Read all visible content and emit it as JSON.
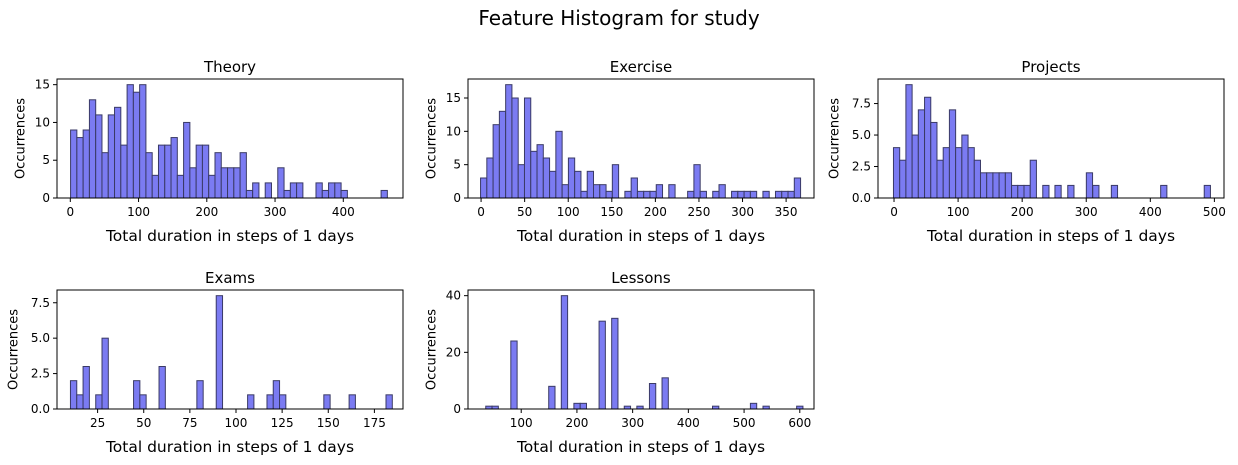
{
  "figure": {
    "suptitle": "Feature Histogram for study"
  },
  "colors": {
    "bar_fill": "#7b7bf2",
    "bar_edge": "#3a3a66",
    "axis": "#000000"
  },
  "chart_data": [
    {
      "type": "bar",
      "title": "Theory",
      "xlabel": "Total duration in steps of 1 days",
      "ylabel": "Occurrences",
      "xlim": [
        -19.5,
        487.5
      ],
      "ylim": [
        0,
        15.75
      ],
      "xticks": [
        0,
        100,
        200,
        300,
        400
      ],
      "yticks": [
        0,
        5,
        10,
        15
      ],
      "bin_width": 9.2,
      "bins_x": [
        5,
        14.2,
        23.4,
        32.6,
        41.8,
        51,
        60.2,
        69.4,
        78.6,
        87.8,
        97,
        106.2,
        115.4,
        124.6,
        133.8,
        143,
        152.2,
        161.4,
        170.6,
        179.8,
        189,
        198.2,
        207.4,
        216.6,
        225.8,
        235,
        244.2,
        253.4,
        262.6,
        271.8,
        290.2,
        308.6,
        317.8,
        327,
        336.2,
        364.6,
        373.8,
        383,
        392.2,
        401.4,
        460
      ],
      "values": [
        9,
        8,
        9,
        13,
        11,
        6,
        11,
        12,
        7,
        15,
        14,
        15,
        6,
        3,
        7,
        7,
        8,
        3,
        10,
        4,
        7,
        7,
        3,
        6,
        4,
        4,
        4,
        6,
        1,
        2,
        2,
        4,
        1,
        2,
        2,
        2,
        1,
        2,
        2,
        1,
        1
      ]
    },
    {
      "type": "bar",
      "title": "Exercise",
      "xlabel": "Total duration in steps of 1 days",
      "ylabel": "Occurrences",
      "xlim": [
        -15,
        382
      ],
      "ylim": [
        0,
        17.85
      ],
      "xticks": [
        0,
        50,
        100,
        150,
        200,
        250,
        300,
        350
      ],
      "yticks": [
        0,
        5,
        10,
        15
      ],
      "bin_width": 7.2,
      "bins_x": [
        3,
        10.2,
        17.4,
        24.6,
        31.8,
        39,
        46.2,
        53.4,
        60.6,
        67.8,
        75,
        82.2,
        89.4,
        96.6,
        103.8,
        111,
        118.2,
        125.4,
        132.6,
        139.8,
        147,
        154.2,
        168.6,
        175.8,
        183,
        190.2,
        197.4,
        204.6,
        219,
        240.6,
        247.8,
        255,
        269.4,
        276.6,
        291,
        298.2,
        305.4,
        312.6,
        327,
        341.4,
        348.6,
        355.8,
        363
      ],
      "values": [
        3,
        6,
        11,
        13,
        17,
        15,
        5,
        15,
        7,
        8,
        6,
        4,
        10,
        2,
        6,
        4,
        1,
        4,
        2,
        2,
        1,
        5,
        1,
        3,
        1,
        1,
        1,
        2,
        2,
        1,
        5,
        1,
        1,
        2,
        1,
        1,
        1,
        1,
        1,
        1,
        1,
        1,
        3
      ]
    },
    {
      "type": "bar",
      "title": "Projects",
      "xlabel": "Total duration in steps of 1 days",
      "ylabel": "Occurrences",
      "xlim": [
        -25,
        515
      ],
      "ylim": [
        0,
        9.45
      ],
      "xticks": [
        0,
        100,
        200,
        300,
        400,
        500
      ],
      "yticks": [
        0,
        2.5,
        5,
        7.5
      ],
      "yticklabels": [
        "0.0",
        "2.5",
        "5.0",
        "7.5"
      ],
      "bin_width": 9.7,
      "bins_x": [
        4,
        13.7,
        23.4,
        33.1,
        42.8,
        52.5,
        62.2,
        71.9,
        81.6,
        91.3,
        101,
        110.7,
        120.4,
        130.1,
        139.8,
        149.5,
        159.2,
        168.9,
        178.6,
        188.3,
        198,
        207.7,
        217.4,
        237,
        256,
        276,
        305,
        315,
        344,
        421,
        489
      ],
      "values": [
        4,
        3,
        9,
        5,
        7,
        8,
        6,
        3,
        4,
        7,
        4,
        5,
        4,
        3,
        2,
        2,
        2,
        2,
        2,
        1,
        1,
        1,
        3,
        1,
        1,
        1,
        2,
        1,
        1,
        1,
        1
      ]
    },
    {
      "type": "bar",
      "title": "Exams",
      "xlabel": "Total duration in steps of 1 days",
      "ylabel": "Occurrences",
      "xlim": [
        3,
        190.5
      ],
      "ylim": [
        0,
        8.4
      ],
      "xticks": [
        25,
        50,
        75,
        100,
        125,
        150,
        175
      ],
      "yticks": [
        0,
        2.5,
        5,
        7.5
      ],
      "yticklabels": [
        "0.0",
        "2.5",
        "5.0",
        "7.5"
      ],
      "bin_width": 3.42,
      "bins_x": [
        12,
        15.42,
        18.84,
        25.7,
        29.1,
        46.2,
        49.6,
        60,
        80.5,
        91,
        108,
        118.5,
        121.9,
        125.3,
        149.3,
        163,
        183
      ],
      "values": [
        2,
        1,
        3,
        1,
        5,
        2,
        1,
        3,
        2,
        8,
        1,
        1,
        2,
        1,
        1,
        1,
        1
      ]
    },
    {
      "type": "bar",
      "title": "Lessons",
      "xlabel": "Total duration in steps of 1 days",
      "ylabel": "Occurrences",
      "xlim": [
        4.5,
        625.5
      ],
      "ylim": [
        0,
        42
      ],
      "xticks": [
        100,
        200,
        300,
        400,
        500,
        600
      ],
      "yticks": [
        0,
        20,
        40
      ],
      "bin_width": 11.3,
      "bins_x": [
        42,
        53.3,
        87,
        155,
        177.6,
        200.2,
        211.5,
        245.4,
        268,
        290.6,
        313.2,
        335.8,
        358.4,
        449,
        517,
        539.6,
        600
      ],
      "values": [
        1,
        1,
        24,
        8,
        40,
        2,
        2,
        31,
        32,
        1,
        1,
        9,
        11,
        1,
        2,
        1,
        1
      ]
    }
  ]
}
